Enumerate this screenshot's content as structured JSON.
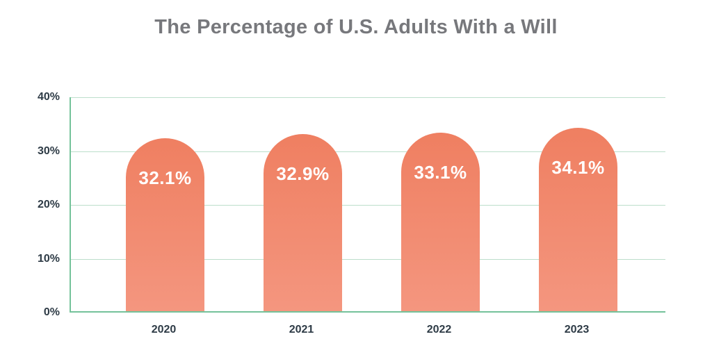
{
  "title": "The Percentage of U.S. Adults With a Will",
  "chart_data": {
    "type": "bar",
    "title": "The Percentage of U.S. Adults With a Will",
    "categories": [
      "2020",
      "2021",
      "2022",
      "2023"
    ],
    "values": [
      32.1,
      32.9,
      33.1,
      34.1
    ],
    "data_labels": [
      "32.1%",
      "32.9%",
      "33.1%",
      "34.1%"
    ],
    "xlabel": "",
    "ylabel": "",
    "ylim": [
      0,
      40
    ],
    "ytick_values": [
      40,
      30,
      20,
      10,
      0
    ],
    "ytick_labels": [
      "40%",
      "30%",
      "20%",
      "10%",
      "0%"
    ],
    "grid": true,
    "legend": false,
    "colors": {
      "background": "#FFFFFF",
      "bar_top": "#EF7F61",
      "bar_bottom": "#F4967F",
      "bar_label": "#FFFFFF",
      "grid_line": "#BCDECB",
      "axis_line": "#74C29A",
      "tick_label": "#2E3B46",
      "title": "#77787C"
    }
  }
}
